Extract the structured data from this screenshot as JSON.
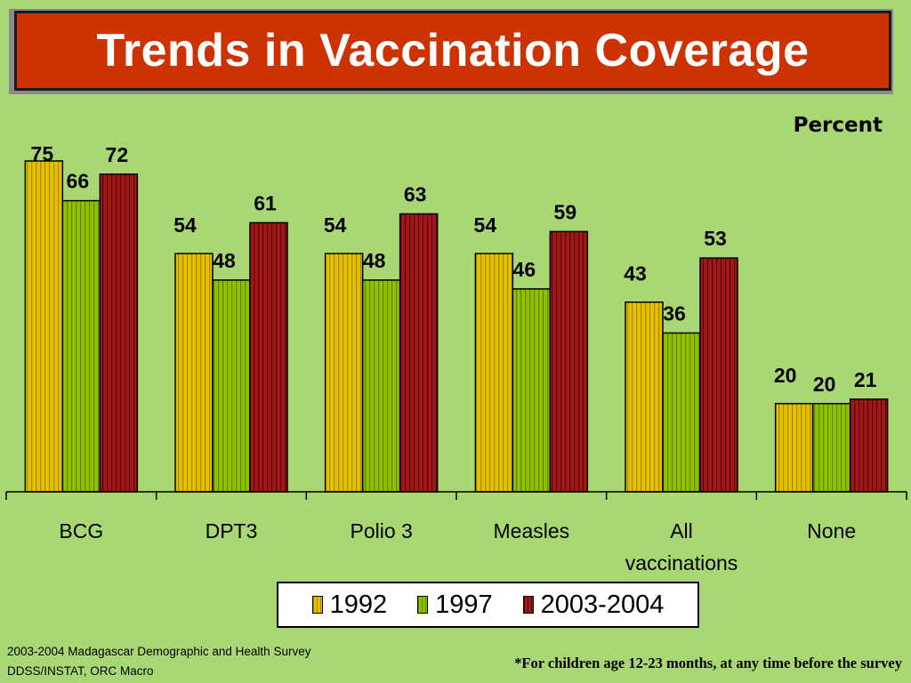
{
  "slide": {
    "title": "Trends in Vaccination Coverage",
    "unit_label": "Percent",
    "source_lines": [
      "2003-2004 Madagascar Demographic and Health Survey",
      "DDSS/INSTAT, ORC Macro"
    ],
    "footnote": "*For children age 12-23 months, at any time before the survey"
  },
  "colors": {
    "background": "#a9d773",
    "title_background": "#cc3300",
    "title_text": "#ffffff"
  },
  "chart_data": {
    "type": "bar",
    "title": "",
    "xlabel": "",
    "ylabel": "",
    "ylim": [
      0,
      75
    ],
    "grid": false,
    "legend_position": "bottom",
    "categories": [
      "BCG",
      "DPT3",
      "Polio 3",
      "Measles",
      "All vaccinations",
      "None"
    ],
    "category_label_lines": [
      [
        "BCG"
      ],
      [
        "DPT3"
      ],
      [
        "Polio 3"
      ],
      [
        "Measles"
      ],
      [
        "All",
        "vaccinations"
      ],
      [
        "None"
      ]
    ],
    "series": [
      {
        "name": "1992",
        "values": [
          75,
          54,
          54,
          54,
          43,
          20
        ],
        "color": "#e3c000",
        "stripe": "#a88a00"
      },
      {
        "name": "1997",
        "values": [
          66,
          48,
          48,
          46,
          36,
          20
        ],
        "color": "#90c000",
        "stripe": "#5f8a00"
      },
      {
        "name": "2003-2004",
        "values": [
          72,
          61,
          63,
          59,
          53,
          21
        ],
        "color": "#a01818",
        "stripe": "#5a0000"
      }
    ]
  }
}
